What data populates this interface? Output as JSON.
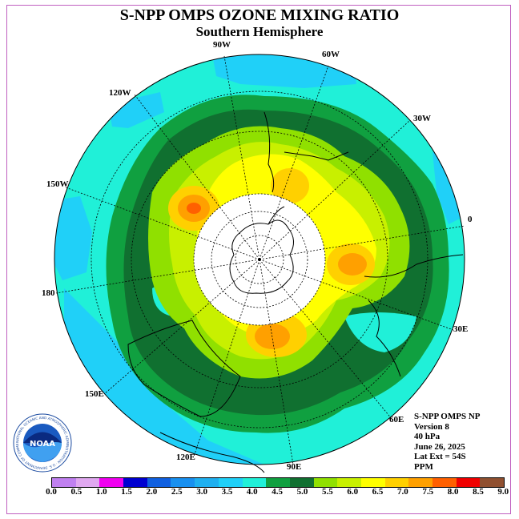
{
  "title": "S-NPP OMPS OZONE MIXING RATIO",
  "subtitle": "Southern Hemisphere",
  "logo": {
    "text": "NOAA",
    "ring_text": "NATIONAL OCEANIC AND ATMOSPHERIC ADMINISTRATION · U.S. DEPARTMENT OF COMMERCE"
  },
  "longitude_labels": [
    "90W",
    "60W",
    "120W",
    "30W",
    "150W",
    "0",
    "180",
    "30E",
    "150E",
    "60E",
    "120E",
    "90E"
  ],
  "info": {
    "instrument": "S-NPP OMPS NP",
    "version": "Version 8",
    "level": "40 hPa",
    "date": "June 26, 2025",
    "lat_ext": "Lat Ext = 54S",
    "units": "PPM"
  },
  "colorbar": {
    "ticks": [
      "0.0",
      "0.5",
      "1.0",
      "1.5",
      "2.0",
      "2.5",
      "3.0",
      "3.5",
      "4.0",
      "4.5",
      "5.0",
      "5.5",
      "6.0",
      "6.5",
      "7.0",
      "7.5",
      "8.0",
      "8.5",
      "9.0"
    ],
    "colors": [
      "#c080f0",
      "#e0a8f0",
      "#f000f0",
      "#0000d0",
      "#1060e0",
      "#1890f0",
      "#20b0f0",
      "#20d0f8",
      "#20f0d8",
      "#10a040",
      "#107030",
      "#90e000",
      "#c8f000",
      "#ffff00",
      "#ffd000",
      "#ffa000",
      "#ff6000",
      "#f00000",
      "#905030"
    ]
  },
  "colors": {
    "polar_cap": "#ffffff",
    "background": "#20f0d8"
  }
}
